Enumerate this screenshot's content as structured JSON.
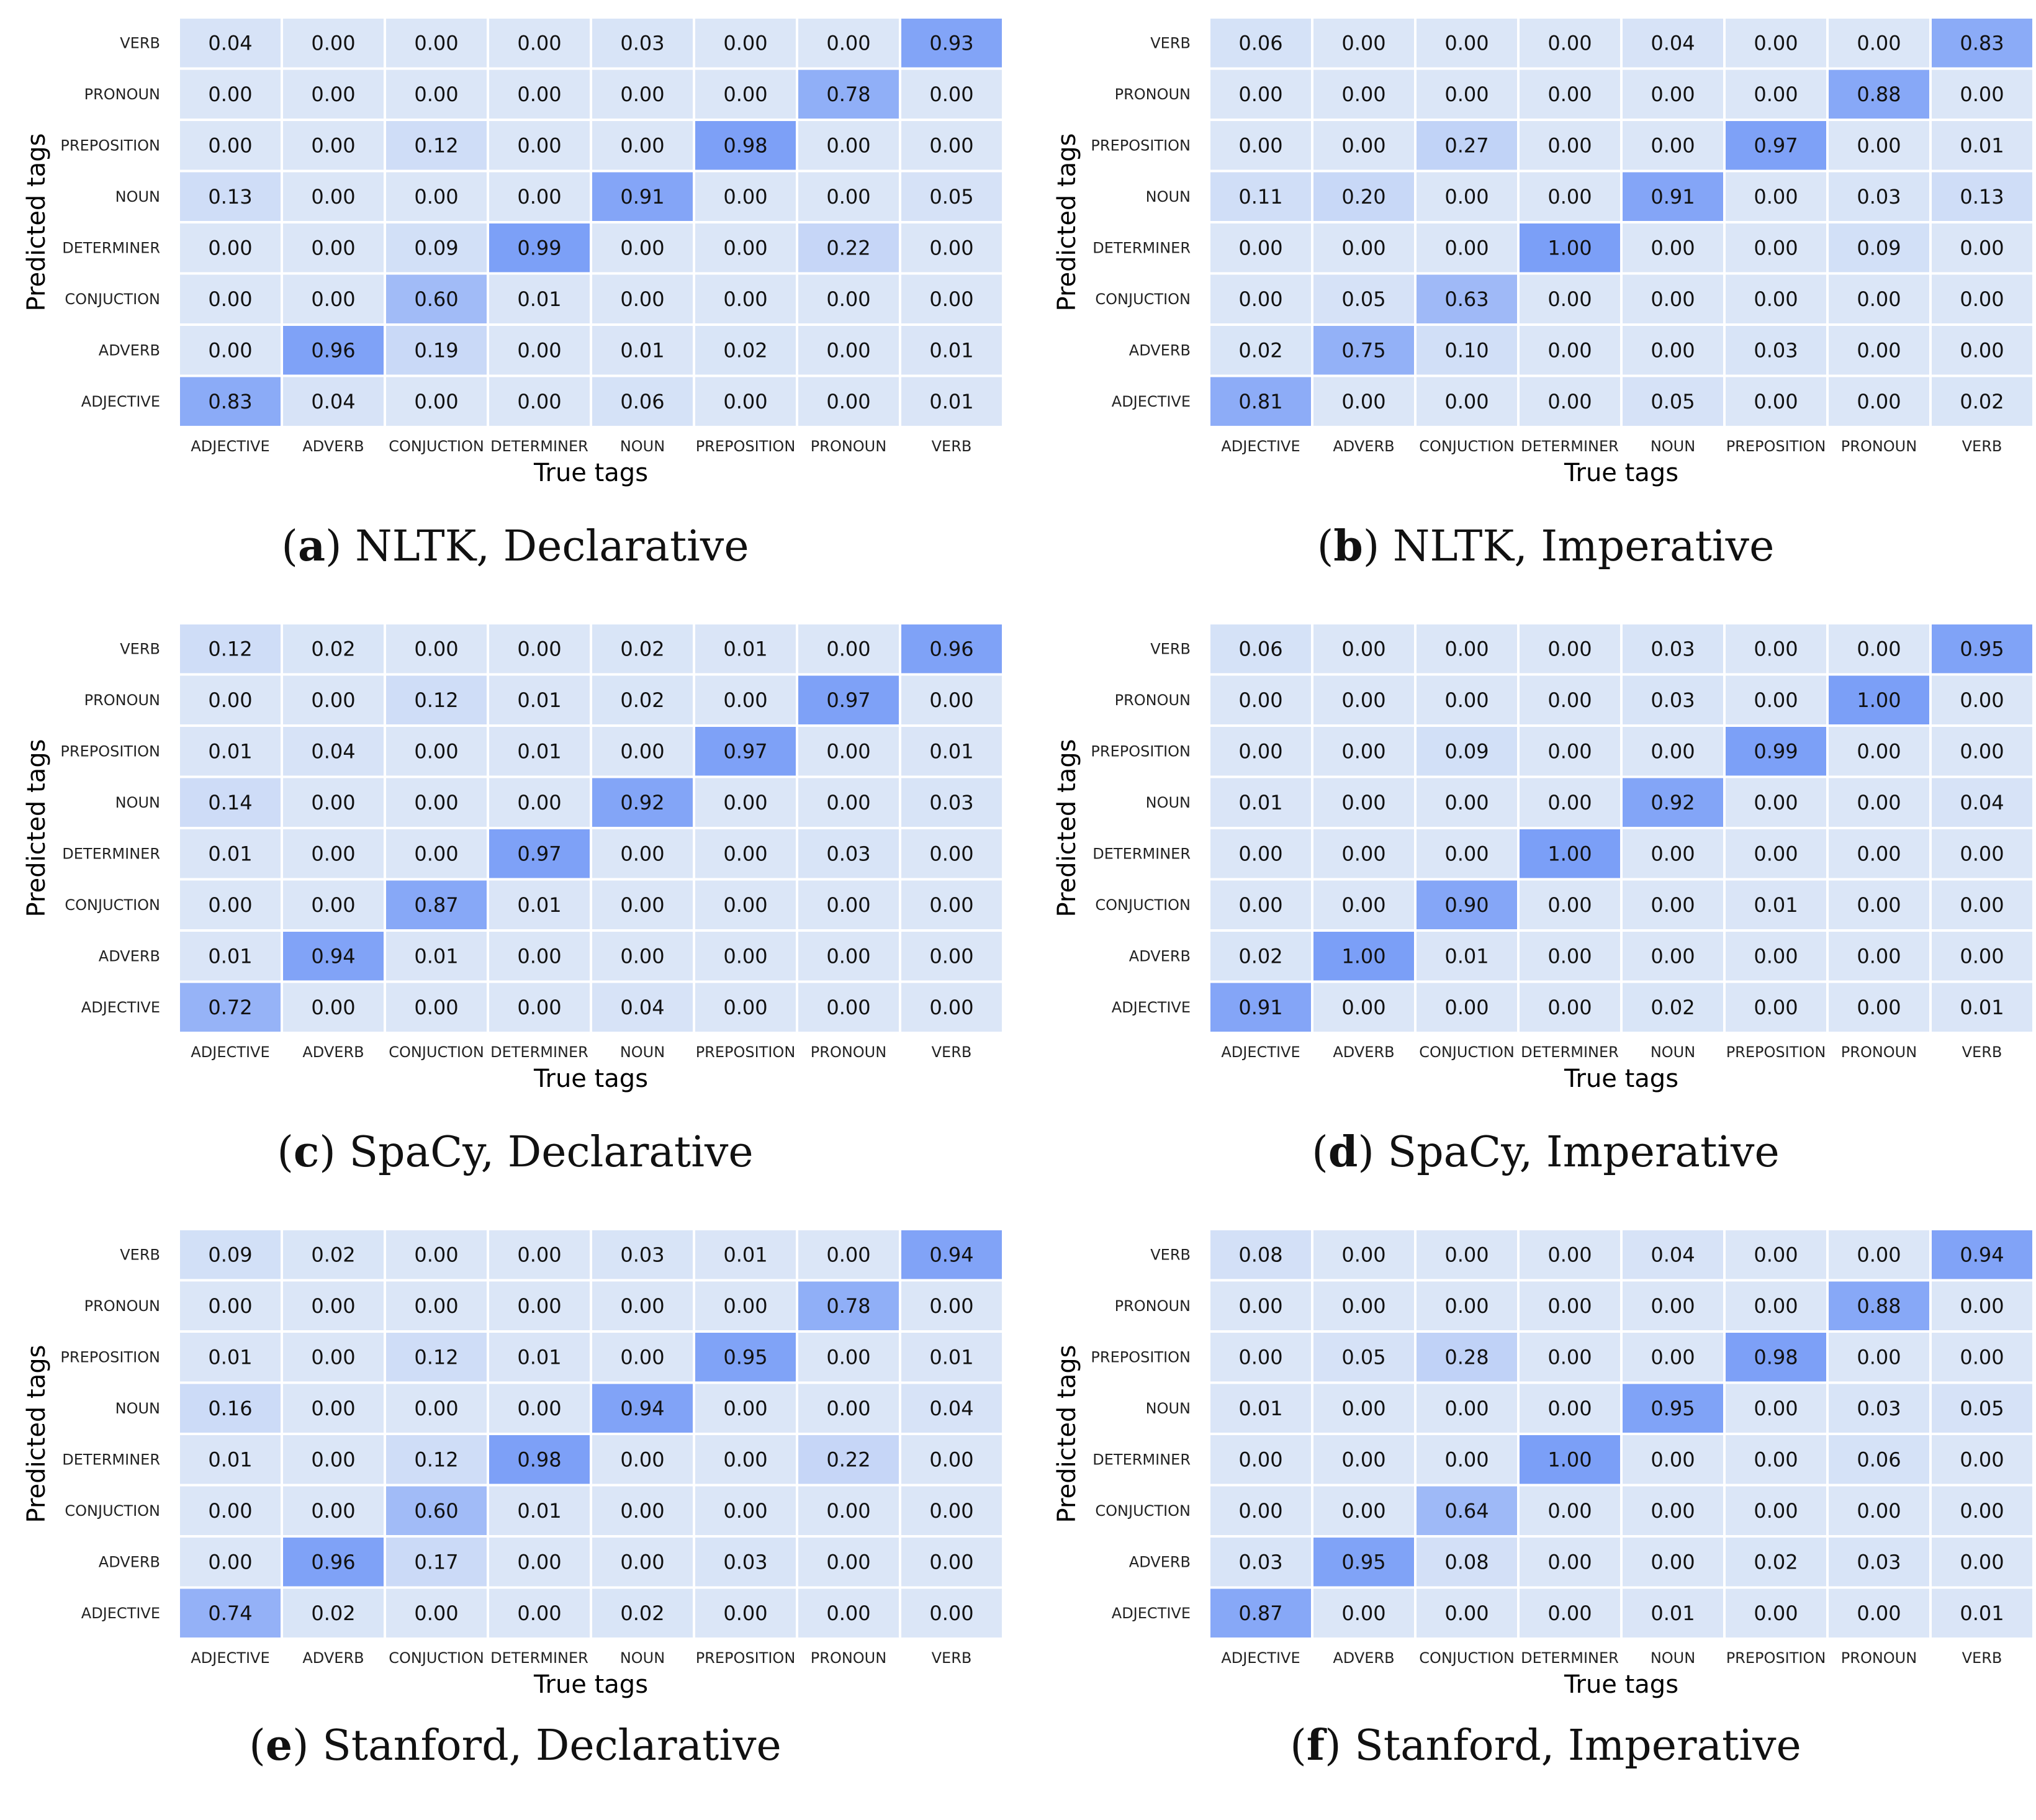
{
  "figure": {
    "colors": {
      "low": "#dbe6f7",
      "high": "#7b9ff7",
      "grid": "#ffffff"
    }
  },
  "chart_data": [
    {
      "type": "heatmap",
      "caption_letter": "a",
      "caption_text": "NLTK, Declarative",
      "xlabel": "True tags",
      "ylabel": "Predicted tags",
      "x_categories": [
        "ADJECTIVE",
        "ADVERB",
        "CONJUCTION",
        "DETERMINER",
        "NOUN",
        "PREPOSITION",
        "PRONOUN",
        "VERB"
      ],
      "y_categories": [
        "VERB",
        "PRONOUN",
        "PREPOSITION",
        "NOUN",
        "DETERMINER",
        "CONJUCTION",
        "ADVERB",
        "ADJECTIVE"
      ],
      "values": [
        [
          "0.04",
          "0.00",
          "0.00",
          "0.00",
          "0.03",
          "0.00",
          "0.00",
          "0.93"
        ],
        [
          "0.00",
          "0.00",
          "0.00",
          "0.00",
          "0.00",
          "0.00",
          "0.78",
          "0.00"
        ],
        [
          "0.00",
          "0.00",
          "0.12",
          "0.00",
          "0.00",
          "0.98",
          "0.00",
          "0.00"
        ],
        [
          "0.13",
          "0.00",
          "0.00",
          "0.00",
          "0.91",
          "0.00",
          "0.00",
          "0.05"
        ],
        [
          "0.00",
          "0.00",
          "0.09",
          "0.99",
          "0.00",
          "0.00",
          "0.22",
          "0.00"
        ],
        [
          "0.00",
          "0.00",
          "0.60",
          "0.01",
          "0.00",
          "0.00",
          "0.00",
          "0.00"
        ],
        [
          "0.00",
          "0.96",
          "0.19",
          "0.00",
          "0.01",
          "0.02",
          "0.00",
          "0.01"
        ],
        [
          "0.83",
          "0.04",
          "0.00",
          "0.00",
          "0.06",
          "0.00",
          "0.00",
          "0.01"
        ]
      ]
    },
    {
      "type": "heatmap",
      "caption_letter": "b",
      "caption_text": "NLTK, Imperative",
      "xlabel": "True tags",
      "ylabel": "Predicted tags",
      "x_categories": [
        "ADJECTIVE",
        "ADVERB",
        "CONJUCTION",
        "DETERMINER",
        "NOUN",
        "PREPOSITION",
        "PRONOUN",
        "VERB"
      ],
      "y_categories": [
        "VERB",
        "PRONOUN",
        "PREPOSITION",
        "NOUN",
        "DETERMINER",
        "CONJUCTION",
        "ADVERB",
        "ADJECTIVE"
      ],
      "values": [
        [
          "0.06",
          "0.00",
          "0.00",
          "0.00",
          "0.04",
          "0.00",
          "0.00",
          "0.83"
        ],
        [
          "0.00",
          "0.00",
          "0.00",
          "0.00",
          "0.00",
          "0.00",
          "0.88",
          "0.00"
        ],
        [
          "0.00",
          "0.00",
          "0.27",
          "0.00",
          "0.00",
          "0.97",
          "0.00",
          "0.01"
        ],
        [
          "0.11",
          "0.20",
          "0.00",
          "0.00",
          "0.91",
          "0.00",
          "0.03",
          "0.13"
        ],
        [
          "0.00",
          "0.00",
          "0.00",
          "1.00",
          "0.00",
          "0.00",
          "0.09",
          "0.00"
        ],
        [
          "0.00",
          "0.05",
          "0.63",
          "0.00",
          "0.00",
          "0.00",
          "0.00",
          "0.00"
        ],
        [
          "0.02",
          "0.75",
          "0.10",
          "0.00",
          "0.00",
          "0.03",
          "0.00",
          "0.00"
        ],
        [
          "0.81",
          "0.00",
          "0.00",
          "0.00",
          "0.05",
          "0.00",
          "0.00",
          "0.02"
        ]
      ]
    },
    {
      "type": "heatmap",
      "caption_letter": "c",
      "caption_text": "SpaCy, Declarative",
      "xlabel": "True tags",
      "ylabel": "Predicted tags",
      "x_categories": [
        "ADJECTIVE",
        "ADVERB",
        "CONJUCTION",
        "DETERMINER",
        "NOUN",
        "PREPOSITION",
        "PRONOUN",
        "VERB"
      ],
      "y_categories": [
        "VERB",
        "PRONOUN",
        "PREPOSITION",
        "NOUN",
        "DETERMINER",
        "CONJUCTION",
        "ADVERB",
        "ADJECTIVE"
      ],
      "values": [
        [
          "0.12",
          "0.02",
          "0.00",
          "0.00",
          "0.02",
          "0.01",
          "0.00",
          "0.96"
        ],
        [
          "0.00",
          "0.00",
          "0.12",
          "0.01",
          "0.02",
          "0.00",
          "0.97",
          "0.00"
        ],
        [
          "0.01",
          "0.04",
          "0.00",
          "0.01",
          "0.00",
          "0.97",
          "0.00",
          "0.01"
        ],
        [
          "0.14",
          "0.00",
          "0.00",
          "0.00",
          "0.92",
          "0.00",
          "0.00",
          "0.03"
        ],
        [
          "0.01",
          "0.00",
          "0.00",
          "0.97",
          "0.00",
          "0.00",
          "0.03",
          "0.00"
        ],
        [
          "0.00",
          "0.00",
          "0.87",
          "0.01",
          "0.00",
          "0.00",
          "0.00",
          "0.00"
        ],
        [
          "0.01",
          "0.94",
          "0.01",
          "0.00",
          "0.00",
          "0.00",
          "0.00",
          "0.00"
        ],
        [
          "0.72",
          "0.00",
          "0.00",
          "0.00",
          "0.04",
          "0.00",
          "0.00",
          "0.00"
        ]
      ]
    },
    {
      "type": "heatmap",
      "caption_letter": "d",
      "caption_text": "SpaCy, Imperative",
      "xlabel": "True tags",
      "ylabel": "Predicted tags",
      "x_categories": [
        "ADJECTIVE",
        "ADVERB",
        "CONJUCTION",
        "DETERMINER",
        "NOUN",
        "PREPOSITION",
        "PRONOUN",
        "VERB"
      ],
      "y_categories": [
        "VERB",
        "PRONOUN",
        "PREPOSITION",
        "NOUN",
        "DETERMINER",
        "CONJUCTION",
        "ADVERB",
        "ADJECTIVE"
      ],
      "values": [
        [
          "0.06",
          "0.00",
          "0.00",
          "0.00",
          "0.03",
          "0.00",
          "0.00",
          "0.95"
        ],
        [
          "0.00",
          "0.00",
          "0.00",
          "0.00",
          "0.03",
          "0.00",
          "1.00",
          "0.00"
        ],
        [
          "0.00",
          "0.00",
          "0.09",
          "0.00",
          "0.00",
          "0.99",
          "0.00",
          "0.00"
        ],
        [
          "0.01",
          "0.00",
          "0.00",
          "0.00",
          "0.92",
          "0.00",
          "0.00",
          "0.04"
        ],
        [
          "0.00",
          "0.00",
          "0.00",
          "1.00",
          "0.00",
          "0.00",
          "0.00",
          "0.00"
        ],
        [
          "0.00",
          "0.00",
          "0.90",
          "0.00",
          "0.00",
          "0.01",
          "0.00",
          "0.00"
        ],
        [
          "0.02",
          "1.00",
          "0.01",
          "0.00",
          "0.00",
          "0.00",
          "0.00",
          "0.00"
        ],
        [
          "0.91",
          "0.00",
          "0.00",
          "0.00",
          "0.02",
          "0.00",
          "0.00",
          "0.01"
        ]
      ]
    },
    {
      "type": "heatmap",
      "caption_letter": "e",
      "caption_text": "Stanford, Declarative",
      "xlabel": "True tags",
      "ylabel": "Predicted tags",
      "x_categories": [
        "ADJECTIVE",
        "ADVERB",
        "CONJUCTION",
        "DETERMINER",
        "NOUN",
        "PREPOSITION",
        "PRONOUN",
        "VERB"
      ],
      "y_categories": [
        "VERB",
        "PRONOUN",
        "PREPOSITION",
        "NOUN",
        "DETERMINER",
        "CONJUCTION",
        "ADVERB",
        "ADJECTIVE"
      ],
      "values": [
        [
          "0.09",
          "0.02",
          "0.00",
          "0.00",
          "0.03",
          "0.01",
          "0.00",
          "0.94"
        ],
        [
          "0.00",
          "0.00",
          "0.00",
          "0.00",
          "0.00",
          "0.00",
          "0.78",
          "0.00"
        ],
        [
          "0.01",
          "0.00",
          "0.12",
          "0.01",
          "0.00",
          "0.95",
          "0.00",
          "0.01"
        ],
        [
          "0.16",
          "0.00",
          "0.00",
          "0.00",
          "0.94",
          "0.00",
          "0.00",
          "0.04"
        ],
        [
          "0.01",
          "0.00",
          "0.12",
          "0.98",
          "0.00",
          "0.00",
          "0.22",
          "0.00"
        ],
        [
          "0.00",
          "0.00",
          "0.60",
          "0.01",
          "0.00",
          "0.00",
          "0.00",
          "0.00"
        ],
        [
          "0.00",
          "0.96",
          "0.17",
          "0.00",
          "0.00",
          "0.03",
          "0.00",
          "0.00"
        ],
        [
          "0.74",
          "0.02",
          "0.00",
          "0.00",
          "0.02",
          "0.00",
          "0.00",
          "0.00"
        ]
      ]
    },
    {
      "type": "heatmap",
      "caption_letter": "f",
      "caption_text": "Stanford, Imperative",
      "xlabel": "True tags",
      "ylabel": "Predicted tags",
      "x_categories": [
        "ADJECTIVE",
        "ADVERB",
        "CONJUCTION",
        "DETERMINER",
        "NOUN",
        "PREPOSITION",
        "PRONOUN",
        "VERB"
      ],
      "y_categories": [
        "VERB",
        "PRONOUN",
        "PREPOSITION",
        "NOUN",
        "DETERMINER",
        "CONJUCTION",
        "ADVERB",
        "ADJECTIVE"
      ],
      "values": [
        [
          "0.08",
          "0.00",
          "0.00",
          "0.00",
          "0.04",
          "0.00",
          "0.00",
          "0.94"
        ],
        [
          "0.00",
          "0.00",
          "0.00",
          "0.00",
          "0.00",
          "0.00",
          "0.88",
          "0.00"
        ],
        [
          "0.00",
          "0.05",
          "0.28",
          "0.00",
          "0.00",
          "0.98",
          "0.00",
          "0.00"
        ],
        [
          "0.01",
          "0.00",
          "0.00",
          "0.00",
          "0.95",
          "0.00",
          "0.03",
          "0.05"
        ],
        [
          "0.00",
          "0.00",
          "0.00",
          "1.00",
          "0.00",
          "0.00",
          "0.06",
          "0.00"
        ],
        [
          "0.00",
          "0.00",
          "0.64",
          "0.00",
          "0.00",
          "0.00",
          "0.00",
          "0.00"
        ],
        [
          "0.03",
          "0.95",
          "0.08",
          "0.00",
          "0.00",
          "0.02",
          "0.03",
          "0.00"
        ],
        [
          "0.87",
          "0.00",
          "0.00",
          "0.00",
          "0.01",
          "0.00",
          "0.00",
          "0.01"
        ]
      ]
    }
  ]
}
